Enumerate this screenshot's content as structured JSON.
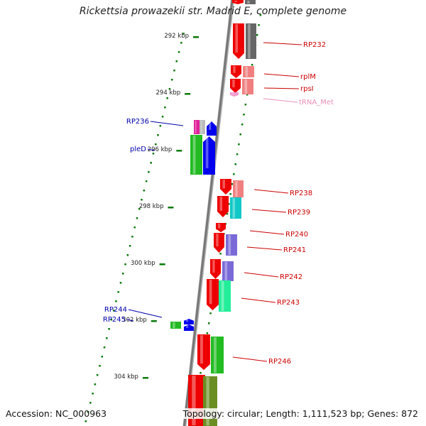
{
  "title": "Rickettsia prowazekii str. Madrid E, complete genome",
  "accession": "Accession: NC_000963",
  "summary": "Topology: circular; Length: 1,111,523 bp; Genes: 872",
  "colors": {
    "backbone": "#777777",
    "tick": "#0a7a0a",
    "red": "#ee0000",
    "blue": "#0000ee",
    "green": "#22bb22",
    "pink": "#f08080",
    "grey": "#666666",
    "cyan": "#11c8c8",
    "purple": "#7a6ad8",
    "mint": "#22ee99",
    "olive": "#6b8e23",
    "magenta": "#e0209a",
    "trna": "#f29bd0",
    "label_red": "#cc0000",
    "label_blue": "#0000aa",
    "label_pink": "#e890b8"
  },
  "scale_labels": [
    "292 kbp",
    "294 kbp",
    "296 kbp",
    "298 kbp",
    "300 kbp",
    "302 kbp",
    "304 kbp"
  ],
  "gene_labels": [
    {
      "text": "RP232",
      "color": "label_red"
    },
    {
      "text": "rplM",
      "color": "label_red"
    },
    {
      "text": "rpsI",
      "color": "label_red"
    },
    {
      "text": "tRNA_Met",
      "color": "label_pink"
    },
    {
      "text": "RP236",
      "color": "label_blue"
    },
    {
      "text": "pleD",
      "color": "label_blue"
    },
    {
      "text": "RP238",
      "color": "label_red"
    },
    {
      "text": "RP239",
      "color": "label_red"
    },
    {
      "text": "RP240",
      "color": "label_red"
    },
    {
      "text": "RP241",
      "color": "label_red"
    },
    {
      "text": "RP242",
      "color": "label_red"
    },
    {
      "text": "RP243",
      "color": "label_red"
    },
    {
      "text": "RP244",
      "color": "label_blue"
    },
    {
      "text": "RP245",
      "color": "label_blue"
    },
    {
      "text": "RP246",
      "color": "label_red"
    }
  ]
}
